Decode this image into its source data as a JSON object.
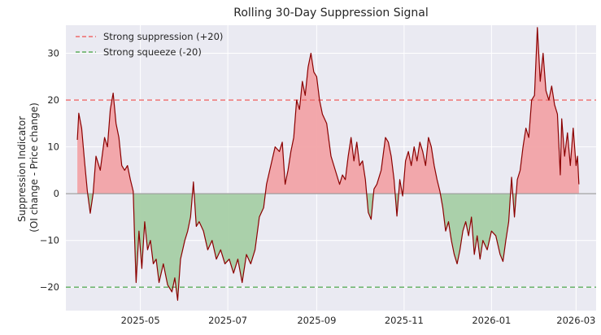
{
  "chart_data": {
    "type": "area",
    "title": "Rolling 30-Day Suppression Signal",
    "xlabel": "",
    "ylabel_lines": [
      "Suppression Indicator",
      "(OI change - Price change)"
    ],
    "xlim": [
      "2025-03-10",
      "2026-03-15"
    ],
    "ylim": [
      -25,
      36
    ],
    "x_ticks": [
      {
        "date": "2025-05-01",
        "label": "2025-05"
      },
      {
        "date": "2025-07-01",
        "label": "2025-07"
      },
      {
        "date": "2025-09-01",
        "label": "2025-09"
      },
      {
        "date": "2025-11-01",
        "label": "2025-11"
      },
      {
        "date": "2026-01-01",
        "label": "2026-01"
      },
      {
        "date": "2026-03-01",
        "label": "2026-03"
      }
    ],
    "y_ticks": [
      {
        "value": -20,
        "label": "−20"
      },
      {
        "value": -10,
        "label": "−10"
      },
      {
        "value": 0,
        "label": "0"
      },
      {
        "value": 10,
        "label": "10"
      },
      {
        "value": 20,
        "label": "20"
      },
      {
        "value": 30,
        "label": "30"
      }
    ],
    "grid": true,
    "legend_position": "top-left",
    "reference_lines": [
      {
        "name": "Strong suppression (+20)",
        "value": 20,
        "color": "#ef6b6b",
        "style": "dashed"
      },
      {
        "name": "Strong squeeze (-20)",
        "value": -20,
        "color": "#5cad5c",
        "style": "dashed"
      }
    ],
    "zero_line": {
      "value": 0,
      "color": "#999999"
    },
    "colors": {
      "line": "#8b0000",
      "positive_fill": "#f2a3a6",
      "negative_fill": "#a6cfa5",
      "background": "#eaeaf2",
      "grid": "#ffffff"
    },
    "series": [
      {
        "name": "Suppression indicator",
        "points": [
          [
            "2025-03-18",
            11.5
          ],
          [
            "2025-03-19",
            17.2
          ],
          [
            "2025-03-21",
            14.0
          ],
          [
            "2025-03-23",
            7.0
          ],
          [
            "2025-03-25",
            0.5
          ],
          [
            "2025-03-27",
            -4.2
          ],
          [
            "2025-03-29",
            0.0
          ],
          [
            "2025-03-31",
            8.0
          ],
          [
            "2025-04-03",
            5.0
          ],
          [
            "2025-04-06",
            12.0
          ],
          [
            "2025-04-08",
            10.0
          ],
          [
            "2025-04-10",
            18.0
          ],
          [
            "2025-04-12",
            21.5
          ],
          [
            "2025-04-14",
            15.0
          ],
          [
            "2025-04-16",
            12.0
          ],
          [
            "2025-04-18",
            6.0
          ],
          [
            "2025-04-20",
            5.0
          ],
          [
            "2025-04-22",
            6.0
          ],
          [
            "2025-04-24",
            3.0
          ],
          [
            "2025-04-26",
            0.5
          ],
          [
            "2025-04-27",
            -10.0
          ],
          [
            "2025-04-28",
            -19.0
          ],
          [
            "2025-04-30",
            -8.0
          ],
          [
            "2025-05-02",
            -16.0
          ],
          [
            "2025-05-04",
            -6.0
          ],
          [
            "2025-05-06",
            -12.0
          ],
          [
            "2025-05-08",
            -10.0
          ],
          [
            "2025-05-10",
            -15.0
          ],
          [
            "2025-05-12",
            -14.0
          ],
          [
            "2025-05-14",
            -19.0
          ],
          [
            "2025-05-17",
            -15.0
          ],
          [
            "2025-05-20",
            -19.5
          ],
          [
            "2025-05-23",
            -21.0
          ],
          [
            "2025-05-25",
            -18.0
          ],
          [
            "2025-05-27",
            -22.8
          ],
          [
            "2025-05-29",
            -14.0
          ],
          [
            "2025-06-01",
            -10.0
          ],
          [
            "2025-06-03",
            -8.0
          ],
          [
            "2025-06-05",
            -5.0
          ],
          [
            "2025-06-07",
            2.5
          ],
          [
            "2025-06-09",
            -7.0
          ],
          [
            "2025-06-11",
            -6.0
          ],
          [
            "2025-06-14",
            -8.0
          ],
          [
            "2025-06-17",
            -12.0
          ],
          [
            "2025-06-20",
            -10.0
          ],
          [
            "2025-06-23",
            -14.0
          ],
          [
            "2025-06-26",
            -12.0
          ],
          [
            "2025-06-29",
            -15.0
          ],
          [
            "2025-07-02",
            -14.0
          ],
          [
            "2025-07-05",
            -17.0
          ],
          [
            "2025-07-08",
            -14.0
          ],
          [
            "2025-07-11",
            -19.0
          ],
          [
            "2025-07-14",
            -13.0
          ],
          [
            "2025-07-17",
            -15.0
          ],
          [
            "2025-07-20",
            -12.0
          ],
          [
            "2025-07-23",
            -5.0
          ],
          [
            "2025-07-26",
            -3.0
          ],
          [
            "2025-07-28",
            2.0
          ],
          [
            "2025-07-31",
            6.0
          ],
          [
            "2025-08-03",
            10.0
          ],
          [
            "2025-08-06",
            9.0
          ],
          [
            "2025-08-08",
            11.0
          ],
          [
            "2025-08-10",
            2.0
          ],
          [
            "2025-08-12",
            5.0
          ],
          [
            "2025-08-14",
            9.0
          ],
          [
            "2025-08-16",
            12.0
          ],
          [
            "2025-08-18",
            20.0
          ],
          [
            "2025-08-20",
            18.0
          ],
          [
            "2025-08-22",
            24.0
          ],
          [
            "2025-08-24",
            21.0
          ],
          [
            "2025-08-26",
            27.0
          ],
          [
            "2025-08-28",
            30.0
          ],
          [
            "2025-08-30",
            26.0
          ],
          [
            "2025-09-01",
            25.0
          ],
          [
            "2025-09-03",
            20.0
          ],
          [
            "2025-09-05",
            17.0
          ],
          [
            "2025-09-08",
            15.0
          ],
          [
            "2025-09-11",
            8.0
          ],
          [
            "2025-09-14",
            5.0
          ],
          [
            "2025-09-17",
            2.0
          ],
          [
            "2025-09-19",
            4.0
          ],
          [
            "2025-09-21",
            3.0
          ],
          [
            "2025-09-23",
            8.0
          ],
          [
            "2025-09-25",
            12.0
          ],
          [
            "2025-09-27",
            7.0
          ],
          [
            "2025-09-29",
            11.0
          ],
          [
            "2025-10-01",
            6.0
          ],
          [
            "2025-10-03",
            7.0
          ],
          [
            "2025-10-05",
            3.0
          ],
          [
            "2025-10-07",
            -4.0
          ],
          [
            "2025-10-09",
            -5.5
          ],
          [
            "2025-10-11",
            1.0
          ],
          [
            "2025-10-13",
            2.0
          ],
          [
            "2025-10-16",
            5.0
          ],
          [
            "2025-10-19",
            12.0
          ],
          [
            "2025-10-21",
            11.0
          ],
          [
            "2025-10-23",
            8.0
          ],
          [
            "2025-10-25",
            3.0
          ],
          [
            "2025-10-27",
            -4.8
          ],
          [
            "2025-10-29",
            3.0
          ],
          [
            "2025-10-31",
            -0.5
          ],
          [
            "2025-11-02",
            7.0
          ],
          [
            "2025-11-04",
            9.0
          ],
          [
            "2025-11-06",
            6.0
          ],
          [
            "2025-11-08",
            10.0
          ],
          [
            "2025-11-10",
            7.0
          ],
          [
            "2025-11-12",
            11.0
          ],
          [
            "2025-11-14",
            9.0
          ],
          [
            "2025-11-16",
            6.0
          ],
          [
            "2025-11-18",
            12.0
          ],
          [
            "2025-11-20",
            10.0
          ],
          [
            "2025-11-22",
            6.0
          ],
          [
            "2025-11-24",
            3.0
          ],
          [
            "2025-11-26",
            0.5
          ],
          [
            "2025-11-28",
            -3.0
          ],
          [
            "2025-11-30",
            -8.0
          ],
          [
            "2025-12-02",
            -6.0
          ],
          [
            "2025-12-04",
            -10.0
          ],
          [
            "2025-12-06",
            -13.0
          ],
          [
            "2025-12-08",
            -15.0
          ],
          [
            "2025-12-10",
            -12.0
          ],
          [
            "2025-12-12",
            -8.0
          ],
          [
            "2025-12-14",
            -6.0
          ],
          [
            "2025-12-16",
            -9.0
          ],
          [
            "2025-12-18",
            -5.0
          ],
          [
            "2025-12-20",
            -13.0
          ],
          [
            "2025-12-22",
            -9.0
          ],
          [
            "2025-12-24",
            -14.0
          ],
          [
            "2025-12-26",
            -10.0
          ],
          [
            "2025-12-29",
            -12.0
          ],
          [
            "2026-01-01",
            -8.0
          ],
          [
            "2026-01-04",
            -9.0
          ],
          [
            "2026-01-07",
            -13.0
          ],
          [
            "2026-01-09",
            -14.5
          ],
          [
            "2026-01-11",
            -10.0
          ],
          [
            "2026-01-13",
            -6.0
          ],
          [
            "2026-01-15",
            3.5
          ],
          [
            "2026-01-17",
            -5.0
          ],
          [
            "2026-01-19",
            3.0
          ],
          [
            "2026-01-21",
            5.0
          ],
          [
            "2026-01-23",
            10.0
          ],
          [
            "2026-01-25",
            14.0
          ],
          [
            "2026-01-27",
            12.0
          ],
          [
            "2026-01-29",
            20.0
          ],
          [
            "2026-01-31",
            21.0
          ],
          [
            "2026-02-02",
            35.5
          ],
          [
            "2026-02-04",
            24.0
          ],
          [
            "2026-02-06",
            30.0
          ],
          [
            "2026-02-08",
            22.0
          ],
          [
            "2026-02-10",
            20.0
          ],
          [
            "2026-02-12",
            23.0
          ],
          [
            "2026-02-14",
            19.0
          ],
          [
            "2026-02-16",
            17.0
          ],
          [
            "2026-02-18",
            4.0
          ],
          [
            "2026-02-19",
            16.0
          ],
          [
            "2026-02-21",
            8.0
          ],
          [
            "2026-02-23",
            13.0
          ],
          [
            "2026-02-25",
            6.0
          ],
          [
            "2026-02-27",
            14.0
          ],
          [
            "2026-03-01",
            6.0
          ],
          [
            "2026-03-02",
            8.0
          ],
          [
            "2026-03-03",
            2.0
          ]
        ]
      }
    ]
  }
}
